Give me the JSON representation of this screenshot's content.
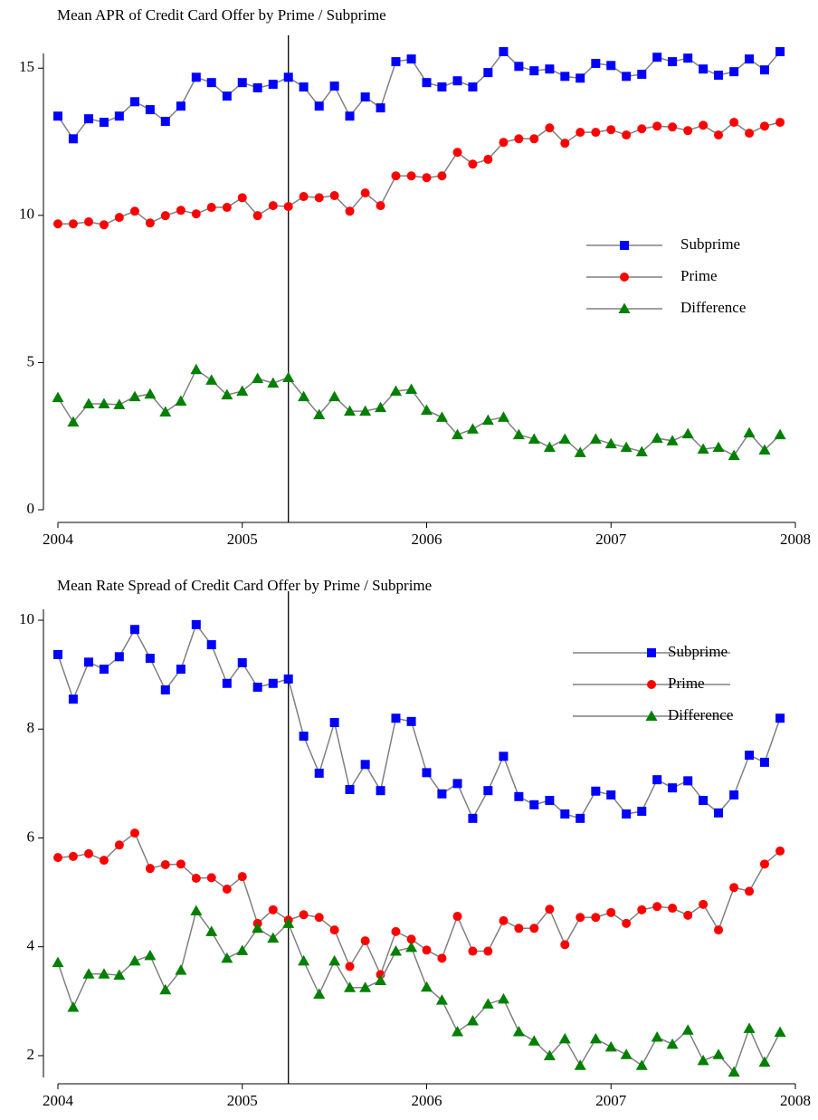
{
  "chart_data": [
    {
      "type": "line",
      "title": "Mean APR of Credit Card Offer by Prime / Subprime",
      "x": [
        2004,
        2004.083,
        2004.167,
        2004.25,
        2004.333,
        2004.417,
        2004.5,
        2004.583,
        2004.667,
        2004.75,
        2004.833,
        2004.917,
        2005,
        2005.083,
        2005.167,
        2005.25,
        2005.333,
        2005.417,
        2005.5,
        2005.583,
        2005.667,
        2005.75,
        2005.833,
        2005.917,
        2006,
        2006.083,
        2006.167,
        2006.25,
        2006.333,
        2006.417,
        2006.5,
        2006.583,
        2006.667,
        2006.75,
        2006.833,
        2006.917,
        2007,
        2007.083,
        2007.167,
        2007.25,
        2007.333,
        2007.417,
        2007.5,
        2007.583,
        2007.667,
        2007.75,
        2007.833,
        2007.917
      ],
      "series": [
        {
          "name": "Subprime",
          "color": "#0000ff",
          "marker": "square",
          "values": [
            13.37,
            12.6,
            13.28,
            13.16,
            13.37,
            13.86,
            13.59,
            13.19,
            13.71,
            14.69,
            14.51,
            14.05,
            14.51,
            14.33,
            14.45,
            14.69,
            14.36,
            13.71,
            14.39,
            13.37,
            14.02,
            13.65,
            15.22,
            15.31,
            14.51,
            14.36,
            14.57,
            14.36,
            14.85,
            15.56,
            15.06,
            14.91,
            14.97,
            14.72,
            14.66,
            15.16,
            15.09,
            14.72,
            14.79,
            15.37,
            15.22,
            15.34,
            14.97,
            14.76,
            14.88,
            15.31,
            14.94,
            15.56
          ]
        },
        {
          "name": "Prime",
          "color": "#ff0000",
          "marker": "circle",
          "values": [
            9.71,
            9.71,
            9.78,
            9.68,
            9.93,
            10.14,
            9.74,
            9.99,
            10.17,
            10.05,
            10.27,
            10.27,
            10.6,
            9.99,
            10.33,
            10.3,
            10.64,
            10.6,
            10.67,
            10.14,
            10.76,
            10.33,
            11.34,
            11.34,
            11.28,
            11.34,
            12.14,
            11.74,
            11.9,
            12.48,
            12.6,
            12.6,
            12.97,
            12.45,
            12.82,
            12.82,
            12.91,
            12.73,
            12.94,
            13.03,
            13.0,
            12.88,
            13.06,
            12.73,
            13.16,
            12.79,
            13.03,
            13.16
          ]
        },
        {
          "name": "Difference",
          "color": "#008000",
          "marker": "triangle",
          "values": [
            3.81,
            2.98,
            3.6,
            3.6,
            3.57,
            3.84,
            3.93,
            3.32,
            3.69,
            4.76,
            4.4,
            3.9,
            4.03,
            4.46,
            4.3,
            4.49,
            3.84,
            3.23,
            3.84,
            3.35,
            3.35,
            3.47,
            4.03,
            4.09,
            3.38,
            3.14,
            2.55,
            2.74,
            3.04,
            3.14,
            2.55,
            2.4,
            2.12,
            2.4,
            1.94,
            2.4,
            2.24,
            2.12,
            1.97,
            2.43,
            2.34,
            2.58,
            2.06,
            2.12,
            1.84,
            2.61,
            2.03,
            2.55
          ]
        }
      ],
      "line_color": "#808080",
      "xlim": [
        2004,
        2008
      ],
      "ylim": [
        0,
        15.5
      ],
      "xticks": [
        2004,
        2005,
        2006,
        2007,
        2008
      ],
      "yticks": [
        0,
        5,
        10,
        15
      ],
      "vline": 2005.25,
      "legend": "right"
    },
    {
      "type": "line",
      "title": "Mean Rate Spread of Credit Card Offer by Prime / Subprime",
      "x": [
        2004,
        2004.083,
        2004.167,
        2004.25,
        2004.333,
        2004.417,
        2004.5,
        2004.583,
        2004.667,
        2004.75,
        2004.833,
        2004.917,
        2005,
        2005.083,
        2005.167,
        2005.25,
        2005.333,
        2005.417,
        2005.5,
        2005.583,
        2005.667,
        2005.75,
        2005.833,
        2005.917,
        2006,
        2006.083,
        2006.167,
        2006.25,
        2006.333,
        2006.417,
        2006.5,
        2006.583,
        2006.667,
        2006.75,
        2006.833,
        2006.917,
        2007,
        2007.083,
        2007.167,
        2007.25,
        2007.333,
        2007.417,
        2007.5,
        2007.583,
        2007.667,
        2007.75,
        2007.833,
        2007.917
      ],
      "series": [
        {
          "name": "Subprime",
          "color": "#0000ff",
          "marker": "square",
          "values": [
            9.37,
            8.55,
            9.23,
            9.1,
            9.33,
            9.83,
            9.3,
            8.72,
            9.1,
            9.92,
            9.55,
            8.84,
            9.22,
            8.77,
            8.84,
            8.92,
            7.87,
            7.19,
            8.12,
            6.89,
            7.35,
            6.87,
            8.2,
            8.14,
            7.2,
            6.81,
            7.0,
            6.36,
            6.87,
            7.5,
            6.76,
            6.61,
            6.69,
            6.44,
            6.36,
            6.86,
            6.79,
            6.44,
            6.49,
            7.07,
            6.92,
            7.05,
            6.69,
            6.46,
            6.79,
            7.52,
            7.39,
            8.2
          ]
        },
        {
          "name": "Prime",
          "color": "#ff0000",
          "marker": "circle",
          "values": [
            5.64,
            5.66,
            5.71,
            5.59,
            5.87,
            6.09,
            5.44,
            5.51,
            5.52,
            5.26,
            5.27,
            5.06,
            5.29,
            4.43,
            4.68,
            4.49,
            4.59,
            4.54,
            4.31,
            3.64,
            4.11,
            3.49,
            4.28,
            4.14,
            3.94,
            3.79,
            4.56,
            3.92,
            3.92,
            4.48,
            4.34,
            4.34,
            4.69,
            4.04,
            4.54,
            4.54,
            4.63,
            4.43,
            4.68,
            4.74,
            4.71,
            4.58,
            4.78,
            4.31,
            5.09,
            5.02,
            5.52,
            5.76
          ]
        },
        {
          "name": "Difference",
          "color": "#008000",
          "marker": "triangle",
          "values": [
            3.71,
            2.89,
            3.5,
            3.5,
            3.48,
            3.74,
            3.84,
            3.21,
            3.57,
            4.66,
            4.28,
            3.79,
            3.93,
            4.34,
            4.16,
            4.43,
            3.74,
            3.13,
            3.74,
            3.25,
            3.25,
            3.38,
            3.92,
            3.99,
            3.26,
            3.02,
            2.44,
            2.64,
            2.95,
            3.04,
            2.44,
            2.27,
            2.0,
            2.31,
            1.82,
            2.31,
            2.16,
            2.02,
            1.82,
            2.34,
            2.21,
            2.47,
            1.91,
            2.02,
            1.7,
            2.5,
            1.88,
            2.43
          ]
        }
      ],
      "line_color": "#808080",
      "xlim": [
        2004,
        2008
      ],
      "ylim": [
        1.6,
        10.2
      ],
      "xticks": [
        2004,
        2005,
        2006,
        2007,
        2008
      ],
      "yticks": [
        2,
        4,
        6,
        8,
        10
      ],
      "vline": 2005.25,
      "legend": "right"
    }
  ]
}
